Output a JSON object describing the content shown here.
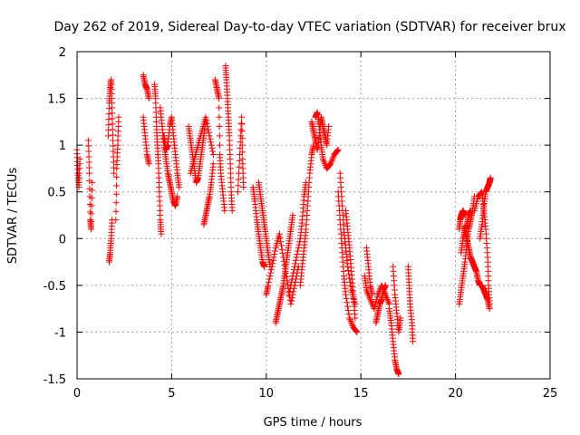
{
  "chart_data": {
    "type": "scatter",
    "title": "Day 262 of 2019, Sidereal Day-to-day VTEC variation (SDTVAR) for receiver brux",
    "xlabel": "GPS time / hours",
    "ylabel": "SDTVAR / TECUs",
    "xlim": [
      0,
      25
    ],
    "ylim": [
      -1.5,
      2
    ],
    "xticks": [
      0,
      5,
      10,
      15,
      20,
      25
    ],
    "yticks": [
      -1.5,
      -1,
      -0.5,
      0,
      0.5,
      1,
      1.5,
      2
    ],
    "grid": true,
    "marker": "+",
    "color": "#ff0000",
    "tracks": [
      [
        [
          0.0,
          0.95
        ],
        [
          0.05,
          0.7
        ],
        [
          0.1,
          0.55
        ],
        [
          0.15,
          0.85
        ]
      ],
      [
        [
          0.6,
          1.05
        ],
        [
          0.65,
          0.7
        ],
        [
          0.7,
          0.2
        ],
        [
          0.75,
          0.1
        ],
        [
          0.8,
          0.6
        ]
      ],
      [
        [
          1.65,
          1.1
        ],
        [
          1.7,
          1.45
        ],
        [
          1.75,
          1.6
        ],
        [
          1.8,
          1.7
        ],
        [
          1.85,
          1.4
        ],
        [
          1.9,
          1.05
        ],
        [
          1.95,
          0.7
        ]
      ],
      [
        [
          1.7,
          -0.25
        ],
        [
          1.75,
          -0.15
        ],
        [
          1.8,
          0.0
        ],
        [
          1.85,
          0.2
        ]
      ],
      [
        [
          2.05,
          0.2
        ],
        [
          2.1,
          0.75
        ],
        [
          2.15,
          1.0
        ],
        [
          2.2,
          1.3
        ]
      ],
      [
        [
          3.5,
          1.75
        ],
        [
          3.6,
          1.65
        ],
        [
          3.7,
          1.6
        ],
        [
          3.8,
          1.5
        ]
      ],
      [
        [
          3.5,
          1.3
        ],
        [
          3.6,
          1.1
        ],
        [
          3.7,
          0.9
        ],
        [
          3.8,
          0.8
        ]
      ],
      [
        [
          4.1,
          1.65
        ],
        [
          4.15,
          1.5
        ],
        [
          4.2,
          1.2
        ],
        [
          4.25,
          1.0
        ],
        [
          4.3,
          0.8
        ],
        [
          4.35,
          0.5
        ],
        [
          4.4,
          0.2
        ],
        [
          4.45,
          0.05
        ]
      ],
      [
        [
          4.4,
          1.4
        ],
        [
          4.5,
          1.2
        ],
        [
          4.6,
          1.0
        ],
        [
          4.7,
          0.85
        ],
        [
          4.8,
          0.7
        ],
        [
          4.9,
          0.6
        ],
        [
          5.0,
          0.5
        ],
        [
          5.1,
          0.4
        ],
        [
          5.2,
          0.35
        ],
        [
          5.3,
          0.45
        ]
      ],
      [
        [
          4.6,
          1.1
        ],
        [
          4.7,
          0.95
        ],
        [
          4.8,
          1.0
        ],
        [
          4.9,
          1.2
        ],
        [
          5.0,
          1.3
        ],
        [
          5.1,
          1.1
        ],
        [
          5.2,
          0.9
        ],
        [
          5.3,
          0.7
        ],
        [
          5.4,
          0.55
        ]
      ],
      [
        [
          5.9,
          1.2
        ],
        [
          6.0,
          1.05
        ],
        [
          6.1,
          0.9
        ],
        [
          6.2,
          0.75
        ],
        [
          6.3,
          0.6
        ],
        [
          6.4,
          0.65
        ],
        [
          6.5,
          0.8
        ],
        [
          6.6,
          0.95
        ],
        [
          6.7,
          1.1
        ],
        [
          6.8,
          1.25
        ]
      ],
      [
        [
          6.0,
          0.7
        ],
        [
          6.2,
          0.85
        ],
        [
          6.4,
          1.0
        ],
        [
          6.6,
          1.15
        ],
        [
          6.8,
          1.3
        ],
        [
          7.0,
          1.1
        ],
        [
          7.2,
          0.9
        ]
      ],
      [
        [
          6.7,
          0.15
        ],
        [
          6.8,
          0.25
        ],
        [
          6.9,
          0.35
        ],
        [
          7.0,
          0.45
        ],
        [
          7.1,
          0.6
        ],
        [
          7.2,
          0.8
        ]
      ],
      [
        [
          7.3,
          1.7
        ],
        [
          7.4,
          1.6
        ],
        [
          7.5,
          1.5
        ],
        [
          7.55,
          0.9
        ],
        [
          7.6,
          0.7
        ],
        [
          7.7,
          0.5
        ],
        [
          7.8,
          0.3
        ]
      ],
      [
        [
          7.85,
          1.85
        ],
        [
          7.9,
          1.7
        ],
        [
          7.95,
          1.5
        ],
        [
          8.0,
          1.3
        ],
        [
          8.05,
          1.1
        ],
        [
          8.1,
          0.8
        ],
        [
          8.15,
          0.5
        ],
        [
          8.2,
          0.3
        ]
      ],
      [
        [
          8.5,
          0.5
        ],
        [
          8.6,
          0.9
        ],
        [
          8.7,
          1.3
        ],
        [
          8.75,
          0.85
        ],
        [
          8.8,
          0.55
        ]
      ],
      [
        [
          9.3,
          0.55
        ],
        [
          9.4,
          0.4
        ],
        [
          9.5,
          0.2
        ],
        [
          9.6,
          0.05
        ],
        [
          9.7,
          -0.1
        ],
        [
          9.8,
          -0.25
        ],
        [
          9.9,
          -0.3
        ]
      ],
      [
        [
          9.6,
          0.6
        ],
        [
          9.7,
          0.45
        ],
        [
          9.8,
          0.3
        ],
        [
          9.9,
          0.15
        ],
        [
          10.0,
          0.0
        ],
        [
          10.1,
          -0.15
        ],
        [
          10.2,
          -0.3
        ]
      ],
      [
        [
          10.0,
          -0.6
        ],
        [
          10.1,
          -0.5
        ],
        [
          10.3,
          -0.3
        ],
        [
          10.5,
          -0.1
        ],
        [
          10.7,
          0.05
        ],
        [
          10.9,
          -0.2
        ],
        [
          11.1,
          -0.45
        ],
        [
          11.3,
          -0.7
        ],
        [
          11.5,
          -0.5
        ],
        [
          11.7,
          -0.3
        ]
      ],
      [
        [
          10.5,
          -0.9
        ],
        [
          10.6,
          -0.8
        ],
        [
          10.7,
          -0.7
        ],
        [
          10.8,
          -0.6
        ],
        [
          10.9,
          -0.5
        ],
        [
          11.0,
          -0.35
        ],
        [
          11.1,
          -0.2
        ],
        [
          11.2,
          -0.05
        ],
        [
          11.3,
          0.1
        ],
        [
          11.4,
          0.25
        ]
      ],
      [
        [
          11.2,
          -0.6
        ],
        [
          11.4,
          -0.4
        ],
        [
          11.6,
          -0.2
        ],
        [
          11.8,
          0.0
        ],
        [
          11.9,
          0.2
        ],
        [
          12.0,
          0.45
        ],
        [
          12.1,
          0.6
        ]
      ],
      [
        [
          11.8,
          -0.5
        ],
        [
          11.9,
          -0.3
        ],
        [
          12.0,
          -0.1
        ],
        [
          12.1,
          0.1
        ],
        [
          12.2,
          0.4
        ],
        [
          12.3,
          0.7
        ],
        [
          12.4,
          0.9
        ],
        [
          12.5,
          1.0
        ]
      ],
      [
        [
          12.4,
          1.25
        ],
        [
          12.5,
          1.15
        ],
        [
          12.6,
          1.05
        ],
        [
          12.7,
          0.95
        ],
        [
          12.8,
          1.1
        ],
        [
          12.9,
          1.3
        ],
        [
          13.0,
          1.2
        ],
        [
          13.1,
          1.1
        ],
        [
          13.2,
          1.0
        ],
        [
          13.3,
          1.2
        ]
      ],
      [
        [
          12.6,
          1.3
        ],
        [
          12.7,
          1.35
        ],
        [
          12.8,
          1.2
        ],
        [
          12.9,
          1.0
        ],
        [
          13.0,
          0.85
        ],
        [
          13.2,
          0.75
        ],
        [
          13.4,
          0.8
        ],
        [
          13.6,
          0.9
        ],
        [
          13.8,
          0.95
        ]
      ],
      [
        [
          13.8,
          0.5
        ],
        [
          13.9,
          0.2
        ],
        [
          14.0,
          -0.1
        ],
        [
          14.1,
          -0.4
        ],
        [
          14.2,
          -0.6
        ],
        [
          14.4,
          -0.85
        ],
        [
          14.6,
          -0.95
        ],
        [
          14.8,
          -1.0
        ]
      ],
      [
        [
          13.9,
          0.7
        ],
        [
          14.0,
          0.4
        ],
        [
          14.1,
          0.1
        ],
        [
          14.2,
          -0.1
        ],
        [
          14.3,
          -0.3
        ],
        [
          14.5,
          -0.55
        ],
        [
          14.7,
          -0.7
        ]
      ],
      [
        [
          14.2,
          0.3
        ],
        [
          14.3,
          0.1
        ],
        [
          14.4,
          -0.1
        ],
        [
          14.5,
          -0.35
        ],
        [
          14.6,
          -0.6
        ],
        [
          14.7,
          -0.85
        ]
      ],
      [
        [
          15.2,
          -0.4
        ],
        [
          15.3,
          -0.55
        ],
        [
          15.5,
          -0.65
        ],
        [
          15.7,
          -0.75
        ],
        [
          15.9,
          -0.6
        ],
        [
          16.1,
          -0.5
        ],
        [
          16.3,
          -0.6
        ],
        [
          16.5,
          -0.7
        ]
      ],
      [
        [
          15.3,
          -0.1
        ],
        [
          15.4,
          -0.3
        ],
        [
          15.5,
          -0.5
        ],
        [
          15.6,
          -0.6
        ]
      ],
      [
        [
          15.8,
          -0.9
        ],
        [
          15.9,
          -0.8
        ],
        [
          16.0,
          -0.7
        ],
        [
          16.1,
          -0.65
        ],
        [
          16.2,
          -0.55
        ],
        [
          16.3,
          -0.5
        ]
      ],
      [
        [
          16.5,
          -0.75
        ],
        [
          16.6,
          -0.9
        ],
        [
          16.7,
          -1.1
        ],
        [
          16.8,
          -1.3
        ],
        [
          16.9,
          -1.4
        ],
        [
          17.0,
          -1.45
        ]
      ],
      [
        [
          16.7,
          -0.3
        ],
        [
          16.8,
          -0.6
        ],
        [
          16.9,
          -0.8
        ],
        [
          17.0,
          -1.0
        ],
        [
          17.1,
          -0.85
        ]
      ],
      [
        [
          17.5,
          -0.3
        ],
        [
          17.55,
          -0.5
        ],
        [
          17.6,
          -0.7
        ],
        [
          17.7,
          -0.9
        ],
        [
          17.75,
          -1.1
        ]
      ],
      [
        [
          20.2,
          -0.7
        ],
        [
          20.3,
          -0.55
        ],
        [
          20.4,
          -0.4
        ],
        [
          20.5,
          -0.25
        ],
        [
          20.6,
          -0.05
        ],
        [
          20.7,
          0.1
        ],
        [
          20.8,
          0.2
        ],
        [
          20.9,
          0.3
        ],
        [
          21.0,
          0.45
        ]
      ],
      [
        [
          20.2,
          0.1
        ],
        [
          20.25,
          0.2
        ],
        [
          20.3,
          0.25
        ],
        [
          20.4,
          0.3
        ],
        [
          20.5,
          0.25
        ]
      ],
      [
        [
          20.3,
          -0.15
        ],
        [
          20.4,
          0.0
        ],
        [
          20.5,
          0.1
        ],
        [
          20.6,
          0.15
        ],
        [
          20.7,
          0.25
        ],
        [
          20.8,
          0.3
        ]
      ],
      [
        [
          20.5,
          0.1
        ],
        [
          20.6,
          0.0
        ],
        [
          20.7,
          -0.1
        ],
        [
          20.8,
          -0.2
        ],
        [
          20.9,
          -0.25
        ],
        [
          21.0,
          -0.3
        ],
        [
          21.1,
          -0.35
        ],
        [
          21.2,
          -0.45
        ],
        [
          21.3,
          -0.5
        ]
      ],
      [
        [
          21.0,
          0.3
        ],
        [
          21.2,
          0.45
        ],
        [
          21.4,
          0.5
        ],
        [
          21.5,
          0.3
        ],
        [
          21.6,
          0.1
        ],
        [
          21.7,
          -0.2
        ],
        [
          21.75,
          -0.5
        ],
        [
          21.8,
          -0.7
        ]
      ],
      [
        [
          21.3,
          0.0
        ],
        [
          21.4,
          0.15
        ],
        [
          21.5,
          0.35
        ],
        [
          21.6,
          0.5
        ],
        [
          21.7,
          0.55
        ],
        [
          21.8,
          0.6
        ],
        [
          21.85,
          0.65
        ]
      ],
      [
        [
          21.4,
          -0.5
        ],
        [
          21.5,
          -0.55
        ],
        [
          21.6,
          -0.6
        ],
        [
          21.7,
          -0.65
        ],
        [
          21.8,
          -0.75
        ]
      ]
    ]
  }
}
